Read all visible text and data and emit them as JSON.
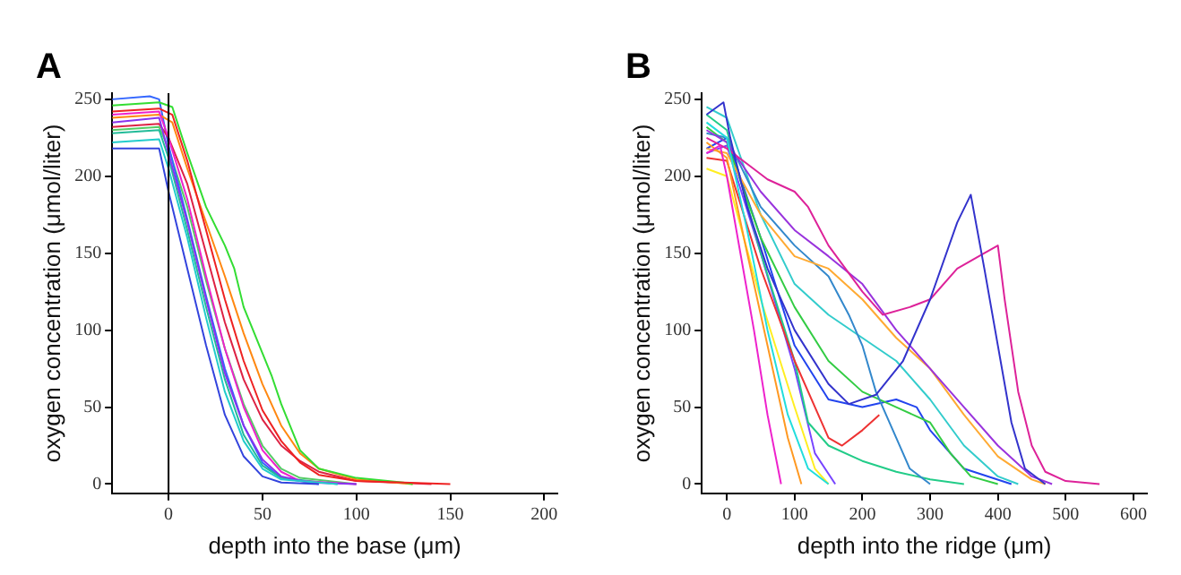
{
  "chart_data": [
    {
      "type": "line",
      "title": "A",
      "xlabel": "depth into the base (μm)",
      "ylabel": "oxygen concentration (μmol/liter)",
      "xlim": [
        -30,
        207
      ],
      "ylim": [
        -6,
        254
      ],
      "xticks": [
        0,
        50,
        100,
        150,
        200
      ],
      "yticks": [
        0,
        50,
        100,
        150,
        200,
        250
      ],
      "grid": false,
      "legend": false,
      "marker": "none",
      "line_style": "solid",
      "ref_lines": [
        {
          "axis": "x",
          "value": 0,
          "color": "#000000"
        }
      ],
      "series": [
        {
          "color": "#3344dd",
          "x": [
            -30,
            -5,
            0,
            10,
            20,
            30,
            40,
            50,
            60,
            80
          ],
          "values": [
            218,
            218,
            190,
            140,
            90,
            45,
            18,
            5,
            1,
            0
          ]
        },
        {
          "color": "#22cccc",
          "x": [
            -30,
            -5,
            0,
            10,
            20,
            30,
            40,
            50,
            60,
            90
          ],
          "values": [
            222,
            224,
            205,
            160,
            108,
            60,
            28,
            10,
            3,
            0
          ]
        },
        {
          "color": "#8833ee",
          "x": [
            -30,
            -5,
            0,
            10,
            20,
            30,
            40,
            50,
            60,
            75,
            100
          ],
          "values": [
            235,
            238,
            215,
            170,
            120,
            72,
            38,
            16,
            5,
            1,
            0
          ]
        },
        {
          "color": "#ee22cc",
          "x": [
            -30,
            -5,
            0,
            10,
            20,
            30,
            40,
            50,
            60,
            70,
            100
          ],
          "values": [
            240,
            242,
            225,
            185,
            135,
            88,
            50,
            22,
            8,
            2,
            0
          ]
        },
        {
          "color": "#22bb99",
          "x": [
            -30,
            -5,
            0,
            10,
            20,
            30,
            40,
            50,
            60,
            90
          ],
          "values": [
            228,
            230,
            212,
            165,
            115,
            68,
            32,
            12,
            4,
            0
          ]
        },
        {
          "color": "#ee2222",
          "x": [
            -30,
            -5,
            2,
            10,
            20,
            30,
            40,
            50,
            60,
            70,
            80,
            100,
            150
          ],
          "values": [
            242,
            244,
            240,
            210,
            165,
            120,
            80,
            48,
            28,
            14,
            6,
            2,
            0
          ]
        },
        {
          "color": "#33dd33",
          "x": [
            -30,
            -5,
            2,
            10,
            20,
            30,
            35,
            40,
            45,
            50,
            55,
            60,
            70,
            80,
            100,
            125,
            130
          ],
          "values": [
            246,
            248,
            245,
            215,
            180,
            155,
            140,
            115,
            100,
            85,
            70,
            52,
            22,
            10,
            4,
            1,
            0
          ]
        },
        {
          "color": "#ff8811",
          "x": [
            -30,
            -5,
            2,
            10,
            20,
            30,
            40,
            50,
            60,
            70,
            80,
            100,
            130
          ],
          "values": [
            238,
            240,
            235,
            205,
            170,
            135,
            98,
            65,
            38,
            20,
            10,
            3,
            0
          ]
        },
        {
          "color": "#dd2244",
          "x": [
            -30,
            -5,
            0,
            10,
            20,
            30,
            40,
            50,
            60,
            70,
            80,
            100,
            140
          ],
          "values": [
            232,
            234,
            225,
            195,
            150,
            105,
            68,
            42,
            25,
            15,
            8,
            2,
            0
          ]
        },
        {
          "color": "#3366ff",
          "x": [
            -30,
            -10,
            -5,
            0,
            10,
            20,
            30,
            40,
            50,
            60,
            80
          ],
          "values": [
            250,
            252,
            250,
            220,
            172,
            122,
            75,
            38,
            14,
            4,
            0
          ]
        },
        {
          "color": "#55cc66",
          "x": [
            -30,
            -5,
            0,
            10,
            20,
            30,
            40,
            50,
            60,
            70,
            100
          ],
          "values": [
            230,
            232,
            218,
            180,
            132,
            88,
            52,
            25,
            10,
            4,
            0
          ]
        }
      ]
    },
    {
      "type": "line",
      "title": "B",
      "xlabel": "depth into the ridge (μm)",
      "ylabel": "oxygen concentration (μmol/liter)",
      "xlim": [
        -37,
        620
      ],
      "ylim": [
        -6,
        254
      ],
      "xticks": [
        0,
        100,
        200,
        300,
        400,
        500,
        600
      ],
      "yticks": [
        0,
        50,
        100,
        150,
        200,
        250
      ],
      "grid": false,
      "legend": false,
      "marker": "none",
      "line_style": "solid",
      "series": [
        {
          "color": "#ee22cc",
          "x": [
            -30,
            -10,
            0,
            20,
            40,
            60,
            80
          ],
          "values": [
            215,
            220,
            200,
            150,
            100,
            45,
            0
          ]
        },
        {
          "color": "#ff9922",
          "x": [
            -30,
            0,
            30,
            60,
            90,
            110
          ],
          "values": [
            222,
            212,
            150,
            90,
            30,
            0
          ]
        },
        {
          "color": "#22dddd",
          "x": [
            -30,
            0,
            30,
            60,
            90,
            120,
            150
          ],
          "values": [
            235,
            225,
            165,
            100,
            45,
            10,
            0
          ]
        },
        {
          "color": "#3333cc",
          "x": [
            -30,
            -5,
            5,
            30,
            60,
            100,
            150,
            180,
            220,
            260,
            300,
            340,
            360,
            380,
            400,
            420,
            440,
            470
          ],
          "values": [
            240,
            248,
            225,
            180,
            140,
            100,
            65,
            52,
            58,
            80,
            120,
            170,
            188,
            140,
            90,
            40,
            10,
            0
          ]
        },
        {
          "color": "#dd2299",
          "x": [
            -30,
            0,
            30,
            60,
            100,
            120,
            150,
            200,
            230,
            270,
            300,
            340,
            380,
            400,
            410,
            430,
            450,
            470,
            500,
            550
          ],
          "values": [
            225,
            218,
            208,
            198,
            190,
            180,
            155,
            125,
            110,
            115,
            120,
            140,
            150,
            155,
            120,
            60,
            25,
            8,
            2,
            0
          ]
        },
        {
          "color": "#9933dd",
          "x": [
            -30,
            0,
            50,
            100,
            150,
            200,
            250,
            300,
            350,
            400,
            450,
            480
          ],
          "values": [
            230,
            222,
            190,
            165,
            148,
            130,
            100,
            75,
            50,
            25,
            5,
            0
          ]
        },
        {
          "color": "#ffaa33",
          "x": [
            -30,
            0,
            50,
            100,
            150,
            200,
            250,
            300,
            350,
            400,
            450,
            470
          ],
          "values": [
            218,
            215,
            175,
            148,
            140,
            120,
            95,
            75,
            45,
            18,
            3,
            0
          ]
        },
        {
          "color": "#3388cc",
          "x": [
            -30,
            0,
            50,
            100,
            150,
            180,
            200,
            220,
            250,
            270,
            300
          ],
          "values": [
            228,
            225,
            180,
            155,
            135,
            110,
            90,
            60,
            30,
            10,
            0
          ]
        },
        {
          "color": "#33cc44",
          "x": [
            -30,
            0,
            50,
            100,
            150,
            200,
            250,
            300,
            330,
            360,
            400
          ],
          "values": [
            232,
            222,
            160,
            115,
            80,
            60,
            50,
            40,
            20,
            5,
            0
          ]
        },
        {
          "color": "#ee3333",
          "x": [
            -30,
            0,
            50,
            100,
            150,
            170,
            200,
            225
          ],
          "values": [
            212,
            210,
            140,
            80,
            30,
            25,
            35,
            45
          ]
        },
        {
          "color": "#ffee22",
          "x": [
            -30,
            0,
            50,
            100,
            130,
            150
          ],
          "values": [
            205,
            200,
            120,
            50,
            10,
            0
          ]
        },
        {
          "color": "#2244ee",
          "x": [
            -30,
            0,
            50,
            100,
            150,
            200,
            250,
            280,
            300,
            350,
            420
          ],
          "values": [
            218,
            225,
            160,
            90,
            55,
            50,
            55,
            50,
            35,
            10,
            0
          ]
        },
        {
          "color": "#22cc88",
          "x": [
            -30,
            0,
            50,
            100,
            120,
            150,
            200,
            250,
            300,
            350
          ],
          "values": [
            240,
            230,
            150,
            80,
            40,
            25,
            15,
            8,
            3,
            0
          ]
        },
        {
          "color": "#7744ff",
          "x": [
            -30,
            0,
            50,
            100,
            130,
            160
          ],
          "values": [
            215,
            220,
            150,
            75,
            20,
            0
          ]
        },
        {
          "color": "#33cccc",
          "x": [
            -30,
            0,
            50,
            100,
            150,
            200,
            250,
            300,
            350,
            400,
            430
          ],
          "values": [
            245,
            238,
            175,
            130,
            110,
            95,
            80,
            55,
            25,
            5,
            0
          ]
        }
      ]
    }
  ]
}
